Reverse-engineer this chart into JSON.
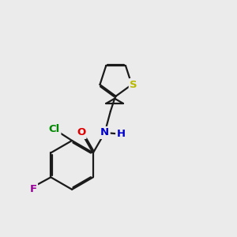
{
  "background_color": "#ebebeb",
  "bond_color": "#1a1a1a",
  "bond_width": 1.6,
  "dbo": 0.055,
  "atom_labels": {
    "S": {
      "color": "#b8b800"
    },
    "O": {
      "color": "#e00000"
    },
    "N": {
      "color": "#0000cc"
    },
    "Cl": {
      "color": "#008800"
    },
    "F": {
      "color": "#990099"
    },
    "H": {
      "color": "#0000cc"
    }
  },
  "figsize": [
    3.0,
    3.0
  ],
  "dpi": 100
}
